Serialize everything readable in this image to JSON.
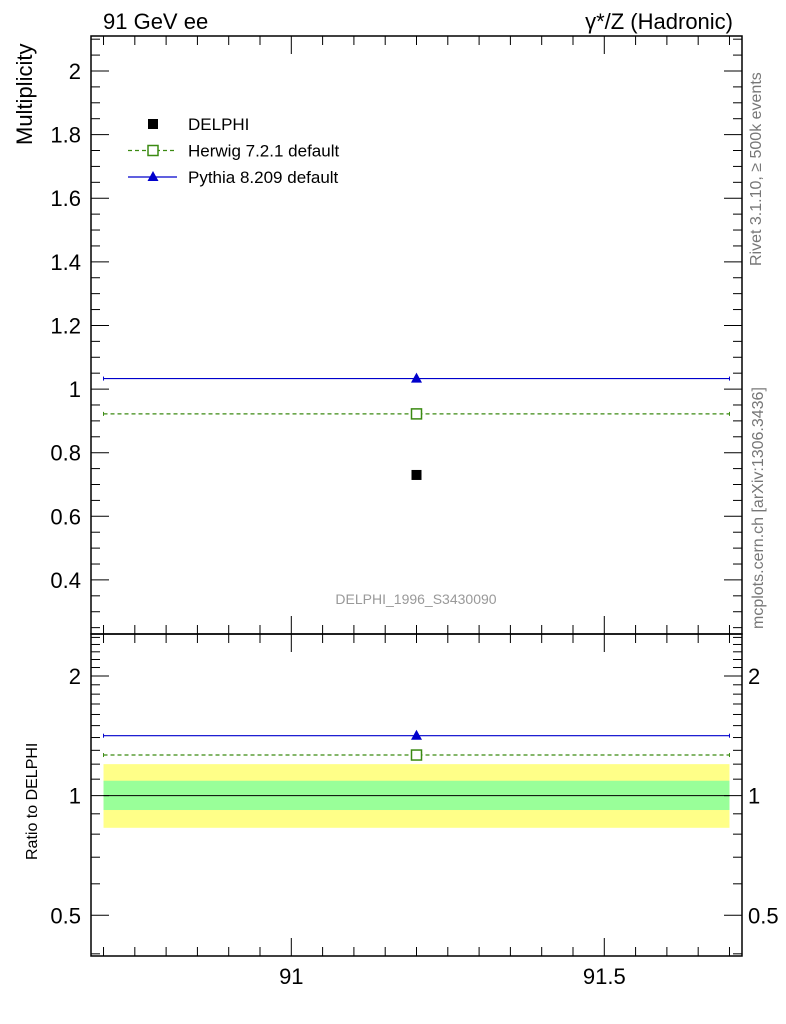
{
  "header": {
    "left": "91 GeV ee",
    "right": "γ*/Z (Hadronic)"
  },
  "side_labels": {
    "rivet": "Rivet 3.1.10, ≥ 500k events",
    "mcplots": "mcplots.cern.ch [arXiv:1306.3436]"
  },
  "analysis_id": "DELPHI_1996_S3430090",
  "colors": {
    "data": "#000000",
    "herwig": "#3b8a12",
    "pythia": "#0000cc",
    "band_inner": "#99ff99",
    "band_outer": "#ffff88"
  },
  "chart_data": [
    {
      "type": "scatter",
      "panel": "main",
      "ylabel": "Multiplicity",
      "xlim": [
        90.68,
        91.72
      ],
      "ylim": [
        0.23,
        2.11
      ],
      "yticks": [
        0.4,
        0.6,
        0.8,
        1,
        1.2,
        1.4,
        1.6,
        1.8,
        2
      ],
      "ytick_labels": [
        "0.4",
        "0.6",
        "0.8",
        "1",
        "1.2",
        "1.4",
        "1.6",
        "1.8",
        "2"
      ],
      "legend_position": "top-left",
      "series": [
        {
          "name": "DELPHI",
          "marker": "filled-square",
          "line": "none",
          "x": 91.2,
          "y": 0.73,
          "xerr": [
            91.2,
            91.2
          ]
        },
        {
          "name": "Herwig 7.2.1 default",
          "marker": "open-square",
          "line": "dashed",
          "x": 91.2,
          "y": 0.922,
          "xerr": [
            90.7,
            91.7
          ]
        },
        {
          "name": "Pythia 8.209 default",
          "marker": "filled-triangle",
          "line": "solid",
          "x": 91.2,
          "y": 1.033,
          "xerr": [
            90.7,
            91.7
          ]
        }
      ]
    },
    {
      "type": "scatter",
      "panel": "ratio",
      "ylabel": "Ratio to DELPHI",
      "xlim": [
        90.68,
        91.72
      ],
      "ylim": [
        0.395,
        2.55
      ],
      "yscale": "log",
      "yticks": [
        0.5,
        1,
        2
      ],
      "ytick_labels": [
        "0.5",
        "1",
        "2"
      ],
      "xticks": [
        91,
        91.5
      ],
      "xtick_labels": [
        "91",
        "91.5"
      ],
      "reference": 1.0,
      "band_inner": [
        0.92,
        1.09
      ],
      "band_outer": [
        0.83,
        1.2
      ],
      "series": [
        {
          "name": "Herwig 7.2.1 default",
          "x": 91.2,
          "y": 1.265,
          "xerr": [
            90.7,
            91.7
          ]
        },
        {
          "name": "Pythia 8.209 default",
          "x": 91.2,
          "y": 1.415,
          "xerr": [
            90.7,
            91.7
          ]
        }
      ]
    }
  ]
}
